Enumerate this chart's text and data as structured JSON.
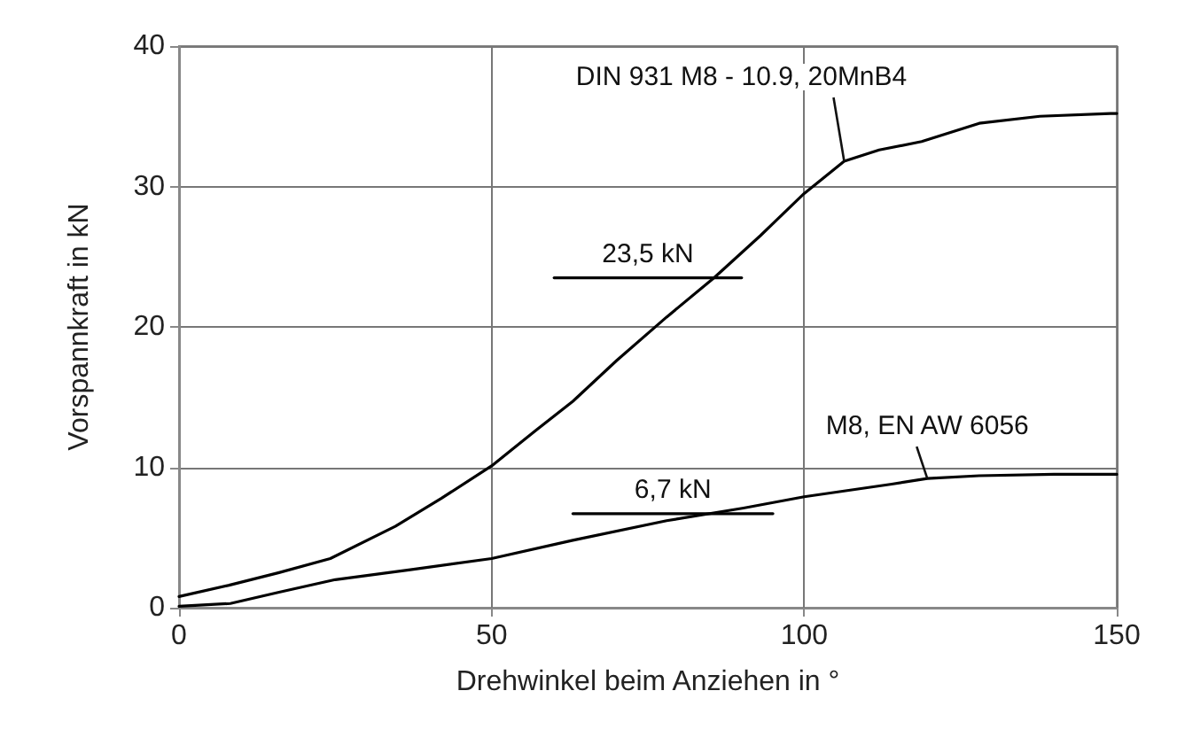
{
  "chart_data": {
    "type": "line",
    "xlabel": "Drehwinkel beim Anziehen in °",
    "ylabel": "Vorspannkraft in kN",
    "xlim": [
      0,
      150
    ],
    "xticks": [
      0,
      50,
      100,
      150
    ],
    "ylim": [
      0,
      40
    ],
    "yticks": [
      0,
      10,
      20,
      30,
      40
    ],
    "grid": true,
    "legend": false,
    "marker": "none",
    "line_style": "solid",
    "series": [
      {
        "name": "DIN 931 M8 - 10.9, 20MnB4",
        "color": "#000000",
        "x": [
          0,
          8,
          16,
          24.2,
          34.6,
          42,
          50,
          57,
          63,
          70,
          78,
          85.6,
          93,
          100,
          106.4,
          112,
          118.8,
          128,
          137.7,
          149,
          150
        ],
        "values": [
          0.8,
          1.6,
          2.5,
          3.5,
          5.8,
          7.8,
          10.1,
          12.6,
          14.7,
          17.6,
          20.7,
          23.5,
          26.5,
          29.5,
          31.8,
          32.6,
          33.2,
          34.5,
          35,
          35.2,
          35.2
        ]
      },
      {
        "name": "M8, EN AW 6056",
        "color": "#000000",
        "x": [
          0,
          8.2,
          16,
          25,
          37,
          50,
          63,
          78,
          90.3,
          100,
          114,
          119.7,
          128,
          140,
          150
        ],
        "values": [
          0.1,
          0.3,
          1.1,
          2,
          2.7,
          3.5,
          4.8,
          6.2,
          7.1,
          7.9,
          8.8,
          9.2,
          9.4,
          9.5,
          9.5
        ]
      },
      {
        "color": "#000000",
        "x": [
          60,
          90
        ],
        "values": [
          23.5,
          23.5
        ]
      },
      {
        "color": "#000000",
        "x": [
          63,
          95
        ],
        "values": [
          6.7,
          6.7
        ]
      }
    ],
    "annotations": [
      {
        "text": "23,5 kN",
        "x": 75,
        "y": 23.5
      },
      {
        "text": "6,7 kN",
        "x": 79,
        "y": 6.7
      }
    ]
  }
}
